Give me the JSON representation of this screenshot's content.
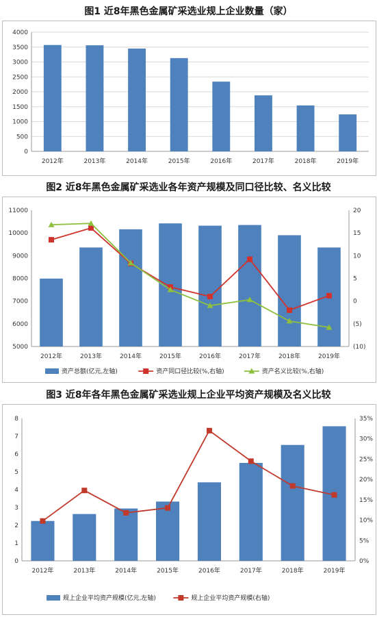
{
  "figures": [
    {
      "title": "图1  近8年黑色金属矿采选业规上企业数量（家）",
      "chart_data": {
        "type": "bar",
        "categories": [
          "2012年",
          "2013年",
          "2014年",
          "2015年",
          "2016年",
          "2017年",
          "2018年",
          "2019年"
        ],
        "series": [
          {
            "values": [
              3570,
              3560,
              3450,
              3130,
              2340,
              1880,
              1540,
              1240
            ],
            "color": "#4f81bd"
          }
        ],
        "ylim": [
          0,
          4000
        ],
        "yticks": [
          0,
          500,
          1000,
          1500,
          2000,
          2500,
          3000,
          3500,
          4000
        ],
        "grid": true
      }
    },
    {
      "title": "图2  近8年黑色金属矿采选业各年资产规模及同口径比较、名义比较",
      "chart_data": {
        "type": "bar+line",
        "categories": [
          "2012年",
          "2013年",
          "2014年",
          "2015年",
          "2016年",
          "2017年",
          "2018年",
          "2019年"
        ],
        "series": [
          {
            "name": "资产总额(亿元,左轴)",
            "type": "bar",
            "axis": "left",
            "values": [
              7990,
              9360,
              10160,
              10420,
              10320,
              10350,
              9900,
              9360
            ],
            "color": "#4f81bd"
          },
          {
            "name": "资产同口径比较(%,右轴)",
            "type": "line",
            "axis": "right",
            "values": [
              13.5,
              16.1,
              8.3,
              3.1,
              1.0,
              9.2,
              -2.0,
              1.2
            ],
            "color": "#d0332d"
          },
          {
            "name": "资产名义比较(%,右轴)",
            "type": "line",
            "axis": "right",
            "values": [
              16.8,
              17.1,
              8.4,
              2.5,
              -1.0,
              0.3,
              -4.4,
              -5.8
            ],
            "color": "#8fbf3f"
          }
        ],
        "ylim_left": [
          5000,
          11000
        ],
        "yticks_left": [
          "5000",
          "6000",
          "7000",
          "8000",
          "9000",
          "10000",
          "11000"
        ],
        "ylim_right": [
          -10,
          20
        ],
        "yticks_right": [
          "(10)",
          "(5)",
          "0",
          "5",
          "10",
          "15",
          "20"
        ],
        "legend": "bottom"
      }
    },
    {
      "title": "图3  近8年各年黑色金属矿采选业规上企业平均资产规模及名义比较",
      "chart_data": {
        "type": "bar+line",
        "categories": [
          "2012年",
          "2013年",
          "2014年",
          "2015年",
          "2016年",
          "2017年",
          "2018年",
          "2019年"
        ],
        "series": [
          {
            "name": "规上企业平均资产规模(亿元,左轴)",
            "type": "bar",
            "axis": "left",
            "values": [
              2.24,
              2.63,
              2.94,
              3.33,
              4.41,
              5.5,
              6.51,
              7.56
            ],
            "color": "#4f81bd"
          },
          {
            "name": "规上企业平均资产规模(右轴)",
            "type": "line",
            "axis": "right",
            "values": [
              9.8,
              17.3,
              11.8,
              13.0,
              32.0,
              24.5,
              18.4,
              16.2
            ],
            "color": "#c0392b"
          }
        ],
        "ylim_left": [
          0,
          8
        ],
        "yticks_left": [
          "0",
          "1",
          "2",
          "3",
          "4",
          "5",
          "6",
          "7",
          "8"
        ],
        "ylim_right": [
          0,
          35
        ],
        "yticks_right": [
          "0%",
          "5%",
          "10%",
          "15%",
          "20%",
          "25%",
          "30%",
          "35%"
        ],
        "legend": "bottom"
      }
    }
  ]
}
